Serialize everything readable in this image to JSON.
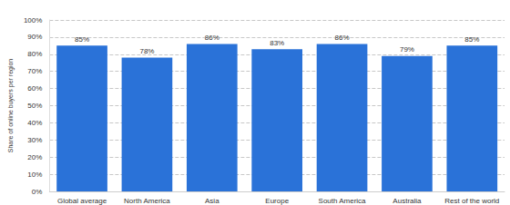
{
  "chart_data": {
    "type": "bar",
    "y_label": "Share of online buyers per region",
    "categories": [
      "Global average",
      "North America",
      "Asia",
      "Europe",
      "South America",
      "Australia",
      "Rest of the world"
    ],
    "values": [
      85,
      78,
      86,
      83,
      86,
      79,
      85
    ],
    "value_labels": [
      "85%",
      "78%",
      "86%",
      "83%",
      "86%",
      "79%",
      "85%"
    ],
    "color": "#2a72d8",
    "ylim": [
      0,
      100
    ],
    "yticks": [
      {
        "value": 0,
        "label": "0%"
      },
      {
        "value": 10,
        "label": "10%"
      },
      {
        "value": 20,
        "label": "20%"
      },
      {
        "value": 30,
        "label": "30%"
      },
      {
        "value": 40,
        "label": "40%"
      },
      {
        "value": 50,
        "label": "50%"
      },
      {
        "value": 60,
        "label": "60%"
      },
      {
        "value": 70,
        "label": "70%"
      },
      {
        "value": 80,
        "label": "80%"
      },
      {
        "value": 90,
        "label": "90%"
      },
      {
        "value": 100,
        "label": "100%"
      }
    ],
    "grid": true,
    "data_labels": true
  }
}
